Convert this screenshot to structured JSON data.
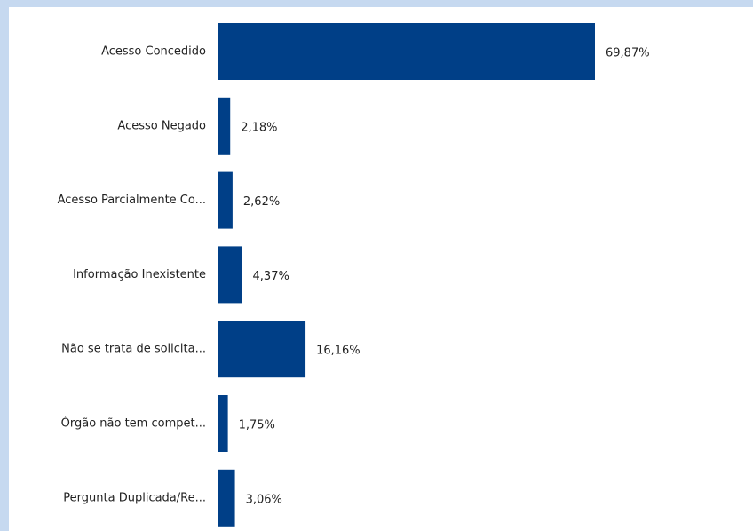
{
  "chart_data": {
    "type": "bar",
    "orientation": "horizontal",
    "categories": [
      "Acesso Concedido",
      "Acesso Negado",
      "Acesso Parcialmente Co...",
      "Informação Inexistente",
      "Não se trata de solicita...",
      "Órgão não tem compet...",
      "Pergunta Duplicada/Re..."
    ],
    "values": [
      69.87,
      2.18,
      2.62,
      4.37,
      16.16,
      1.75,
      3.06
    ],
    "value_labels": [
      "69,87%",
      "2,18%",
      "2,62%",
      "4,37%",
      "16,16%",
      "1,75%",
      "3,06%"
    ],
    "color": "#003f87"
  }
}
